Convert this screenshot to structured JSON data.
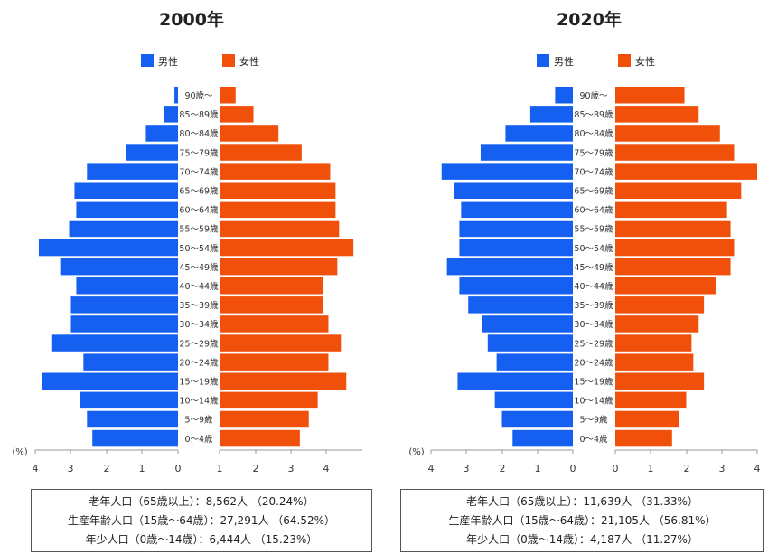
{
  "chart_data": [
    {
      "type": "bar",
      "title": "2000年",
      "x_unit": "(%)",
      "xlim": [
        0,
        4
      ],
      "ticks": [
        "4",
        "3",
        "2",
        "1",
        "0",
        "1",
        "2",
        "3",
        "4"
      ],
      "categories": [
        "90歳～",
        "85～89歳",
        "80～84歳",
        "75～79歳",
        "70～74歳",
        "65～69歳",
        "60～64歳",
        "55～59歳",
        "50～54歳",
        "45～49歳",
        "40～44歳",
        "35～39歳",
        "30～34歳",
        "25～29歳",
        "20～24歳",
        "15～19歳",
        "10～14歳",
        "5～9歳",
        "0～4歳"
      ],
      "series": [
        {
          "name": "男性",
          "color": "#1560f0",
          "values": [
            0.1,
            0.4,
            0.9,
            1.45,
            2.55,
            2.9,
            2.85,
            3.05,
            3.9,
            3.3,
            2.85,
            3.0,
            3.0,
            3.55,
            2.65,
            3.8,
            2.75,
            2.55,
            2.4
          ]
        },
        {
          "name": "女性",
          "color": "#f0500a",
          "values": [
            0.45,
            0.95,
            1.65,
            2.3,
            3.1,
            3.25,
            3.25,
            3.35,
            3.75,
            3.3,
            2.9,
            2.9,
            3.05,
            3.4,
            3.05,
            3.55,
            2.75,
            2.5,
            2.25
          ]
        }
      ],
      "summary": [
        "老年人口（65歳以上）：8,562人 （20.24%）",
        "生産年齢人口（15歳～64歳）：27,291人 （64.52%）",
        "年少人口（0歳～14歳）：6,444人 （15.23%）"
      ]
    },
    {
      "type": "bar",
      "title": "2020年",
      "x_unit": "(%)",
      "xlim": [
        0,
        4
      ],
      "ticks": [
        "4",
        "3",
        "2",
        "1",
        "0",
        "0",
        "1",
        "2",
        "3",
        "4"
      ],
      "categories": [
        "90歳～",
        "85～89歳",
        "80～84歳",
        "75～79歳",
        "70～74歳",
        "65～69歳",
        "60～64歳",
        "55～59歳",
        "50～54歳",
        "45～49歳",
        "40～44歳",
        "35～39歳",
        "30～34歳",
        "25～29歳",
        "20～24歳",
        "15～19歳",
        "10～14歳",
        "5～9歳",
        "0～4歳"
      ],
      "series": [
        {
          "name": "男性",
          "color": "#1560f0",
          "values": [
            0.5,
            1.2,
            1.9,
            2.6,
            3.7,
            3.35,
            3.15,
            3.2,
            3.2,
            3.55,
            3.2,
            2.95,
            2.55,
            2.4,
            2.15,
            3.25,
            2.2,
            2.0,
            1.7
          ]
        },
        {
          "name": "女性",
          "color": "#f0500a",
          "values": [
            1.95,
            2.35,
            2.95,
            3.35,
            4.0,
            3.55,
            3.15,
            3.25,
            3.35,
            3.25,
            2.85,
            2.5,
            2.35,
            2.15,
            2.2,
            2.5,
            2.0,
            1.8,
            1.6
          ]
        }
      ],
      "summary": [
        "老年人口（65歳以上）：11,639人 （31.33%）",
        "生産年齢人口（15歳～64歳）：21,105人 （56.81%）",
        "年少人口（0歳～14歳）：4,187人 （11.27%）"
      ]
    }
  ]
}
